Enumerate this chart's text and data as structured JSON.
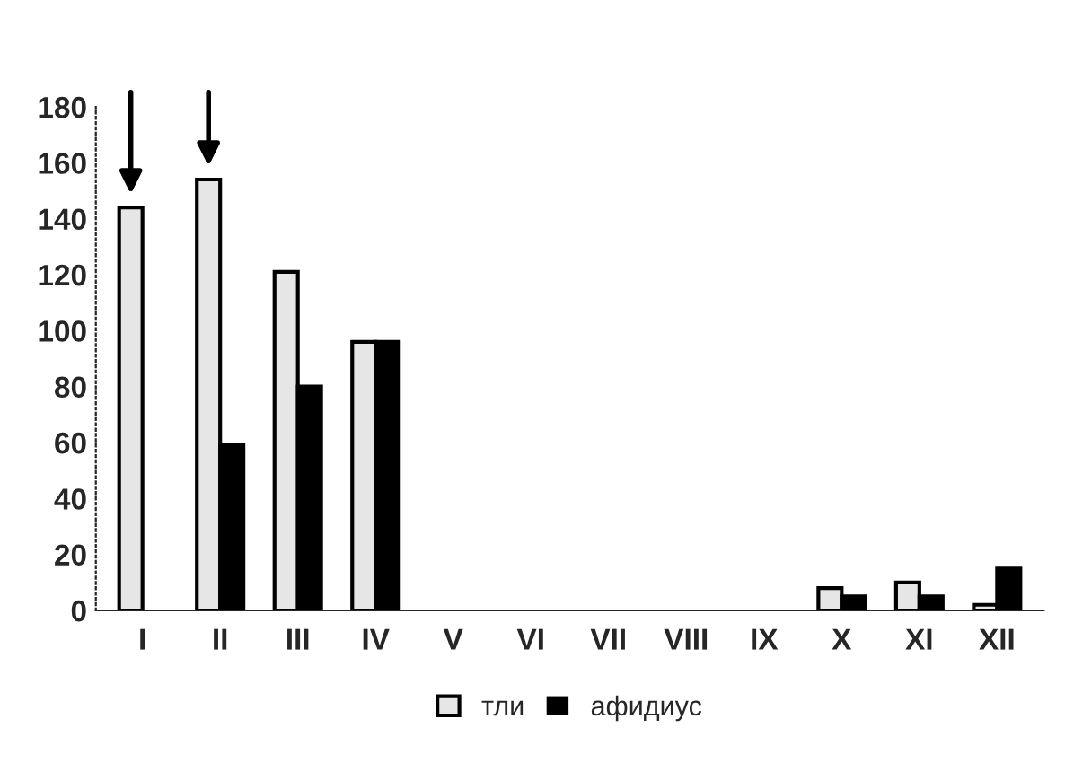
{
  "chart_data": {
    "type": "bar",
    "categories": [
      "I",
      "II",
      "III",
      "IV",
      "V",
      "VI",
      "VII",
      "VIII",
      "IX",
      "X",
      "XI",
      "XII"
    ],
    "series": [
      {
        "name": "тли",
        "color": "#e6e6e6",
        "values": [
          144,
          154,
          121,
          96,
          0,
          0,
          0,
          0,
          0,
          8,
          10,
          2
        ]
      },
      {
        "name": "афидиус",
        "color": "#000000",
        "values": [
          0,
          59,
          80,
          96,
          0,
          0,
          0,
          0,
          0,
          5,
          5,
          15
        ]
      }
    ],
    "ylim": [
      0,
      180
    ],
    "yticks": [
      0,
      20,
      40,
      60,
      80,
      100,
      120,
      140,
      160,
      180
    ],
    "grid": false,
    "legend": "bottom"
  }
}
